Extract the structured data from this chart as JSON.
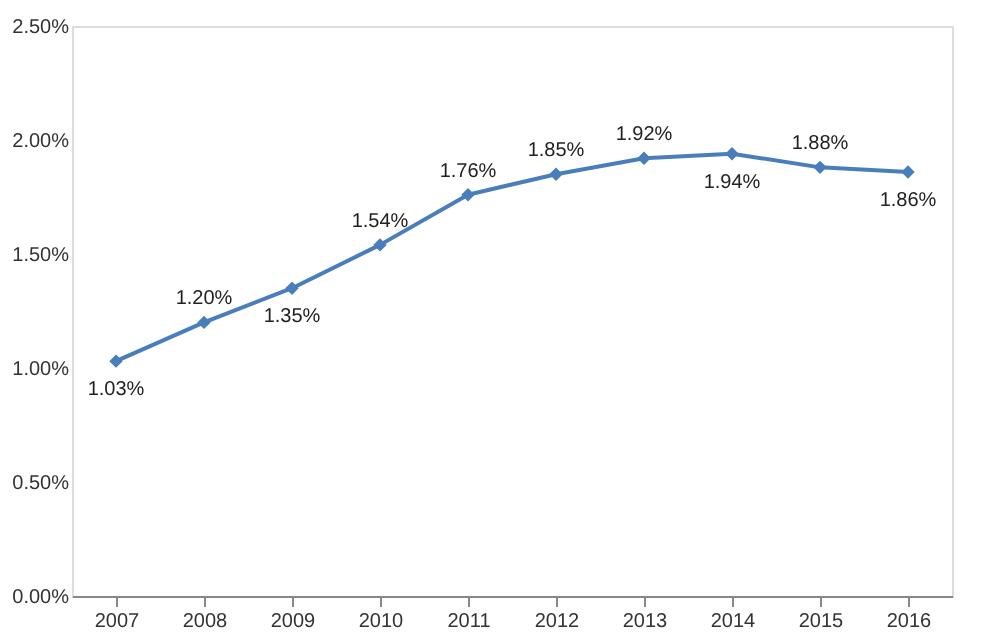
{
  "chart_data": {
    "type": "line",
    "categories": [
      "2007",
      "2008",
      "2009",
      "2010",
      "2011",
      "2012",
      "2013",
      "2014",
      "2015",
      "2016"
    ],
    "series": [
      {
        "color": "#4a7ebb",
        "values": [
          1.03,
          1.2,
          1.35,
          1.54,
          1.76,
          1.85,
          1.92,
          1.94,
          1.88,
          1.86
        ],
        "value_labels": [
          "1.03%",
          "1.20%",
          "1.35%",
          "1.54%",
          "1.76%",
          "1.85%",
          "1.92%",
          "1.94%",
          "1.88%",
          "1.86%"
        ]
      }
    ],
    "ylim": [
      0,
      2.5
    ],
    "yticks": [
      {
        "value": 0,
        "label": "0.00%"
      },
      {
        "value": 0.5,
        "label": "0.50%"
      },
      {
        "value": 1.0,
        "label": "1.00%"
      },
      {
        "value": 1.5,
        "label": "1.50%"
      },
      {
        "value": 2.0,
        "label": "2.00%"
      },
      {
        "value": 2.5,
        "label": "2.50%"
      }
    ],
    "grid": false,
    "marker": "diamond",
    "line_style": "solid"
  }
}
